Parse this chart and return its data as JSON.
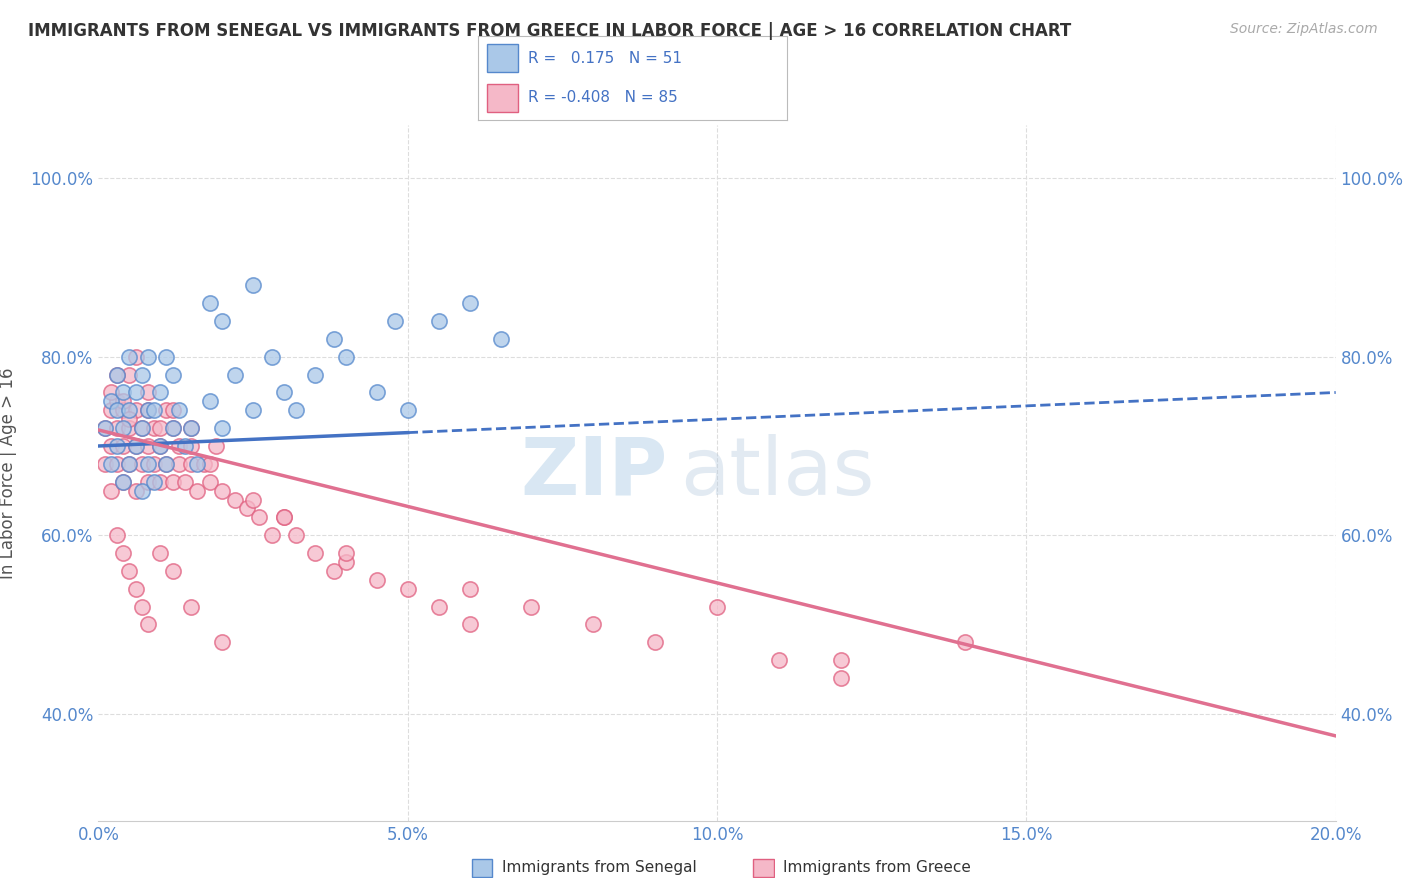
{
  "title": "IMMIGRANTS FROM SENEGAL VS IMMIGRANTS FROM GREECE IN LABOR FORCE | AGE > 16 CORRELATION CHART",
  "source": "Source: ZipAtlas.com",
  "ylabel": "In Labor Force | Age > 16",
  "xlim": [
    0.0,
    0.2
  ],
  "ylim": [
    0.28,
    1.06
  ],
  "xticks": [
    0.0,
    0.05,
    0.1,
    0.15,
    0.2
  ],
  "xticklabels": [
    "0.0%",
    "5.0%",
    "10.0%",
    "15.0%",
    "20.0%"
  ],
  "yticks": [
    0.4,
    0.6,
    0.8,
    1.0
  ],
  "yticklabels": [
    "40.0%",
    "60.0%",
    "80.0%",
    "100.0%"
  ],
  "watermark_ZIP": "ZIP",
  "watermark_atlas": "atlas",
  "color_senegal_fill": "#aac8e8",
  "color_senegal_edge": "#5588cc",
  "color_greece_fill": "#f5b8c8",
  "color_greece_edge": "#e06080",
  "line_senegal_color": "#4472c4",
  "line_greece_color": "#e07090",
  "background_color": "#ffffff",
  "grid_color": "#dddddd",
  "tick_color": "#5588cc",
  "title_color": "#333333",
  "senegal_x": [
    0.001,
    0.002,
    0.002,
    0.003,
    0.003,
    0.003,
    0.004,
    0.004,
    0.004,
    0.005,
    0.005,
    0.005,
    0.006,
    0.006,
    0.007,
    0.007,
    0.007,
    0.008,
    0.008,
    0.008,
    0.009,
    0.009,
    0.01,
    0.01,
    0.011,
    0.011,
    0.012,
    0.012,
    0.013,
    0.014,
    0.015,
    0.016,
    0.018,
    0.02,
    0.022,
    0.025,
    0.028,
    0.03,
    0.032,
    0.035,
    0.038,
    0.04,
    0.045,
    0.048,
    0.05,
    0.055,
    0.06,
    0.065,
    0.018,
    0.02,
    0.025
  ],
  "senegal_y": [
    0.72,
    0.68,
    0.75,
    0.7,
    0.74,
    0.78,
    0.66,
    0.72,
    0.76,
    0.68,
    0.74,
    0.8,
    0.7,
    0.76,
    0.65,
    0.72,
    0.78,
    0.68,
    0.74,
    0.8,
    0.66,
    0.74,
    0.7,
    0.76,
    0.68,
    0.8,
    0.72,
    0.78,
    0.74,
    0.7,
    0.72,
    0.68,
    0.75,
    0.72,
    0.78,
    0.74,
    0.8,
    0.76,
    0.74,
    0.78,
    0.82,
    0.8,
    0.76,
    0.84,
    0.74,
    0.84,
    0.86,
    0.82,
    0.86,
    0.84,
    0.88
  ],
  "greece_x": [
    0.001,
    0.001,
    0.002,
    0.002,
    0.002,
    0.003,
    0.003,
    0.003,
    0.004,
    0.004,
    0.004,
    0.005,
    0.005,
    0.005,
    0.006,
    0.006,
    0.006,
    0.007,
    0.007,
    0.008,
    0.008,
    0.008,
    0.009,
    0.009,
    0.01,
    0.01,
    0.011,
    0.011,
    0.012,
    0.012,
    0.013,
    0.013,
    0.014,
    0.015,
    0.015,
    0.016,
    0.017,
    0.018,
    0.019,
    0.02,
    0.022,
    0.024,
    0.026,
    0.028,
    0.03,
    0.032,
    0.035,
    0.038,
    0.04,
    0.045,
    0.05,
    0.055,
    0.06,
    0.07,
    0.08,
    0.09,
    0.1,
    0.11,
    0.12,
    0.14,
    0.003,
    0.004,
    0.005,
    0.006,
    0.007,
    0.008,
    0.01,
    0.012,
    0.015,
    0.02,
    0.002,
    0.003,
    0.004,
    0.005,
    0.006,
    0.008,
    0.01,
    0.012,
    0.015,
    0.018,
    0.025,
    0.03,
    0.04,
    0.06,
    0.12
  ],
  "greece_y": [
    0.72,
    0.68,
    0.74,
    0.7,
    0.65,
    0.72,
    0.68,
    0.75,
    0.7,
    0.66,
    0.74,
    0.68,
    0.72,
    0.78,
    0.7,
    0.65,
    0.74,
    0.68,
    0.72,
    0.66,
    0.7,
    0.74,
    0.68,
    0.72,
    0.66,
    0.7,
    0.68,
    0.74,
    0.66,
    0.72,
    0.68,
    0.7,
    0.66,
    0.68,
    0.72,
    0.65,
    0.68,
    0.66,
    0.7,
    0.65,
    0.64,
    0.63,
    0.62,
    0.6,
    0.62,
    0.6,
    0.58,
    0.56,
    0.57,
    0.55,
    0.54,
    0.52,
    0.5,
    0.52,
    0.5,
    0.48,
    0.52,
    0.46,
    0.44,
    0.48,
    0.6,
    0.58,
    0.56,
    0.54,
    0.52,
    0.5,
    0.58,
    0.56,
    0.52,
    0.48,
    0.76,
    0.78,
    0.75,
    0.73,
    0.8,
    0.76,
    0.72,
    0.74,
    0.7,
    0.68,
    0.64,
    0.62,
    0.58,
    0.54,
    0.46
  ],
  "senegal_line_x0": 0.0,
  "senegal_line_x1": 0.2,
  "senegal_line_y0": 0.7,
  "senegal_line_y1": 0.76,
  "senegal_line_solid_end": 0.05,
  "greece_line_x0": 0.0,
  "greece_line_x1": 0.2,
  "greece_line_y0": 0.718,
  "greece_line_y1": 0.375
}
